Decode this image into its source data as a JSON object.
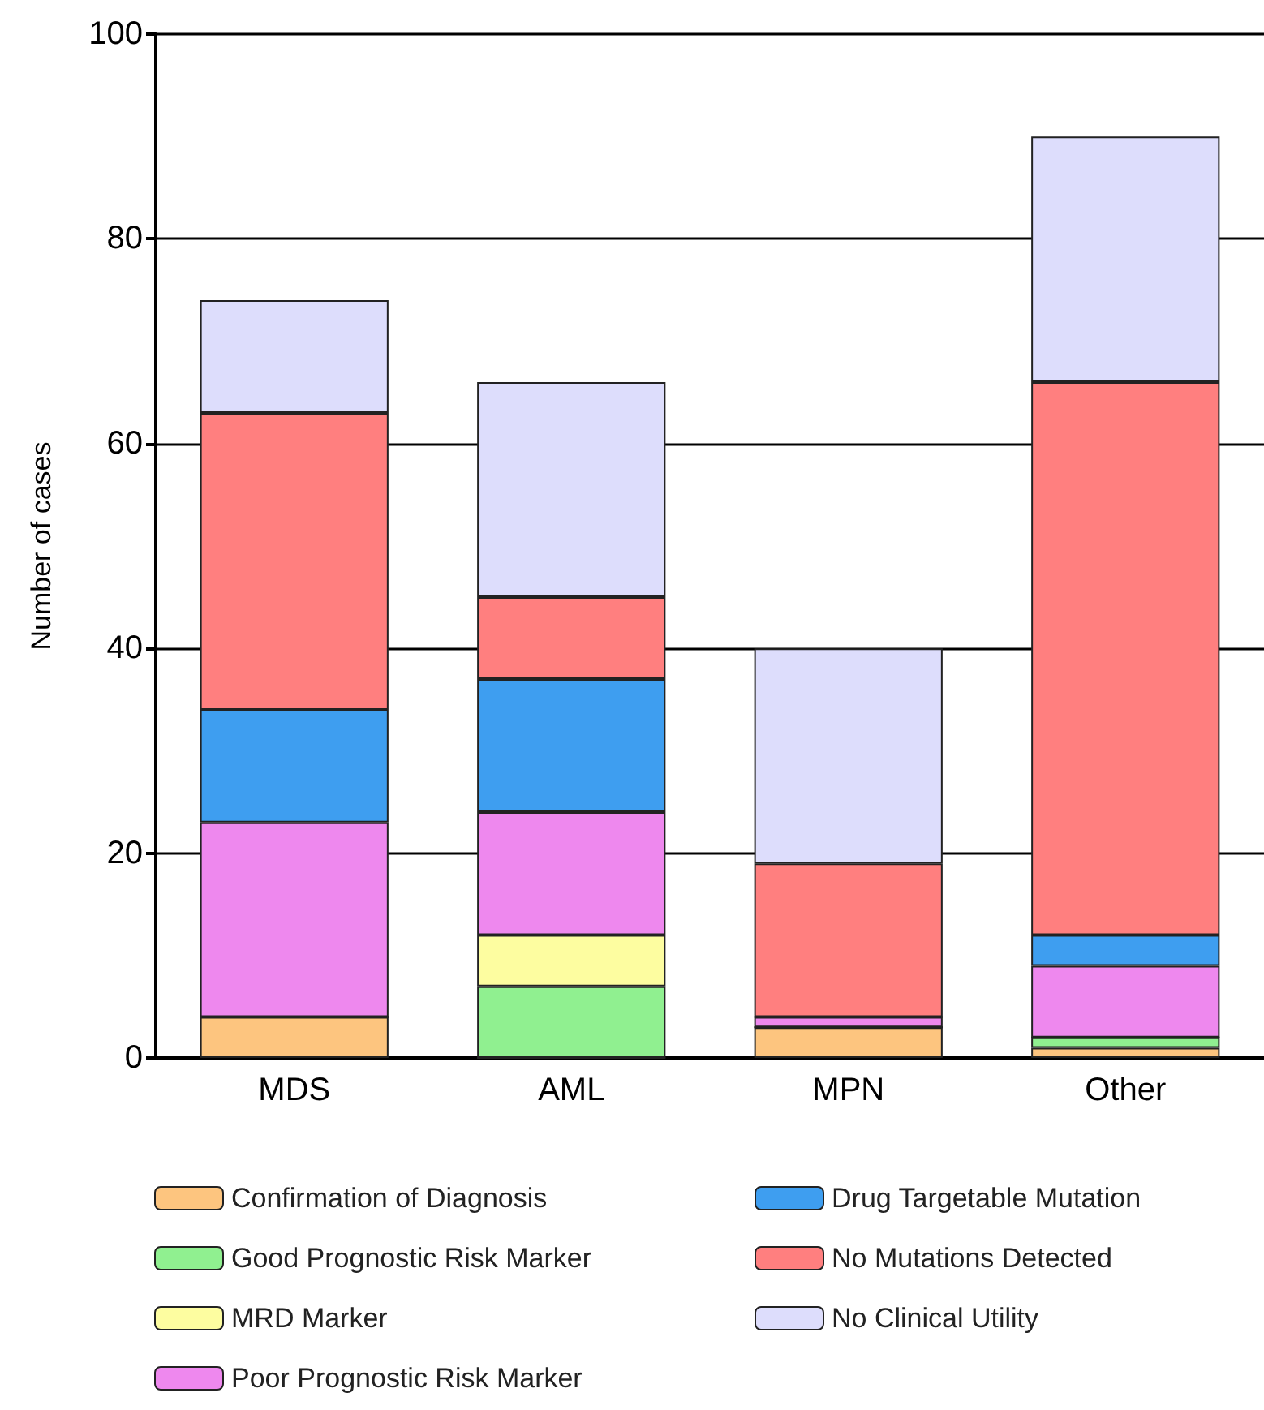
{
  "chart_data": {
    "type": "bar",
    "stacked": true,
    "ylabel": "Number of cases",
    "categories": [
      "MDS",
      "AML",
      "MPN",
      "Other"
    ],
    "series": [
      {
        "name": "Confirmation of Diagnosis",
        "color": "#fdc57f",
        "values": [
          4,
          0,
          3,
          1
        ]
      },
      {
        "name": "Good Prognostic Risk Marker",
        "color": "#90f090",
        "values": [
          0,
          7,
          0,
          1
        ]
      },
      {
        "name": "MRD Marker",
        "color": "#fdfda0",
        "values": [
          0,
          5,
          0,
          0
        ]
      },
      {
        "name": "Poor Prognostic Risk Marker",
        "color": "#ee88ee",
        "values": [
          19,
          12,
          1,
          7
        ]
      },
      {
        "name": "Drug Targetable Mutation",
        "color": "#3e9ef0",
        "values": [
          11,
          13,
          0,
          3
        ]
      },
      {
        "name": "No Mutations Detected",
        "color": "#ff7f7f",
        "values": [
          29,
          8,
          15,
          54
        ]
      },
      {
        "name": "No Clinical Utility",
        "color": "#ddddfc",
        "values": [
          11,
          21,
          21,
          24
        ]
      }
    ],
    "ylim": [
      0,
      100
    ],
    "yticks": [
      0,
      20,
      40,
      60,
      80,
      100
    ],
    "grid": "y",
    "legend": "bottom"
  }
}
